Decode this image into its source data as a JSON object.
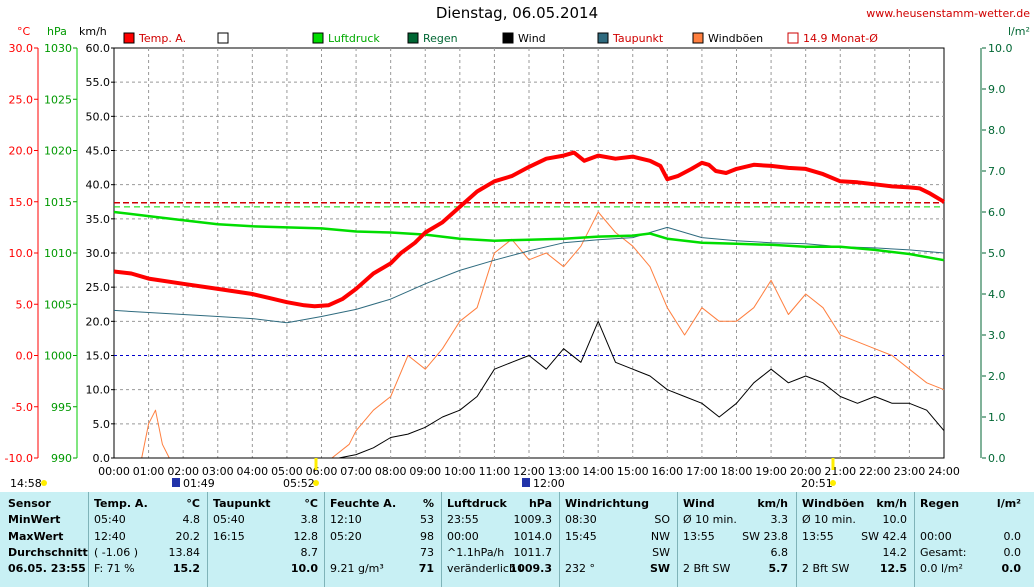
{
  "title": "Dienstag, 06.05.2014",
  "site": "www.heusenstamm-wetter.de",
  "colors": {
    "temp": "#ff0000",
    "pressure": "#00dd00",
    "rain": "#006633",
    "wind": "#000000",
    "dewpoint": "#2f6b7f",
    "gust": "#ff7f3f",
    "monthavg": "#cc0000",
    "panel": "#c8f0f4"
  },
  "chart_data": {
    "type": "line",
    "title": "Dienstag, 06.05.2014",
    "x_ticks": [
      "00:00",
      "01:00",
      "02:00",
      "03:00",
      "04:00",
      "05:00",
      "06:00",
      "07:00",
      "08:00",
      "09:00",
      "10:00",
      "11:00",
      "12:00",
      "13:00",
      "14:00",
      "15:00",
      "16:00",
      "17:00",
      "18:00",
      "19:00",
      "20:00",
      "21:00",
      "22:00",
      "23:00",
      "24:00"
    ],
    "axes": {
      "temp": {
        "label": "°C",
        "ticks": [
          "30.0",
          "25.0",
          "20.0",
          "15.0",
          "10.0",
          "5.0",
          "0.0",
          "-5.0",
          "-10.0"
        ],
        "range": [
          -10,
          30
        ]
      },
      "pressure": {
        "label": "hPa",
        "ticks": [
          "1030",
          "1025",
          "1020",
          "1015",
          "1010",
          "1005",
          "1000",
          "995",
          "990"
        ],
        "range": [
          990,
          1030
        ]
      },
      "wind": {
        "label": "km/h",
        "ticks": [
          "60.0",
          "55.0",
          "50.0",
          "45.0",
          "40.0",
          "35.0",
          "30.0",
          "25.0",
          "20.0",
          "15.0",
          "10.0",
          "5.0",
          "0.0"
        ],
        "range": [
          0,
          60
        ]
      },
      "rain": {
        "label": "l/m²",
        "ticks": [
          "10.0",
          "9.0",
          "8.0",
          "7.0",
          "6.0",
          "5.0",
          "4.0",
          "3.0",
          "2.0",
          "1.0",
          "0.0"
        ],
        "range": [
          0,
          10
        ]
      }
    },
    "legend": [
      "Temp. A.",
      "",
      "Luftdruck",
      "Regen",
      "Wind",
      "Taupunkt",
      "Windböen",
      "14.9 Monat-Ø"
    ],
    "month_avg_temp": 14.9,
    "zero_line_temp": 0,
    "pressure_ref": 1014.5,
    "series": {
      "temp": {
        "name": "Temp. A.",
        "unit": "°C",
        "points": [
          [
            0,
            8.2
          ],
          [
            0.5,
            8
          ],
          [
            1,
            7.5
          ],
          [
            2,
            7
          ],
          [
            3,
            6.5
          ],
          [
            4,
            6
          ],
          [
            4.5,
            5.6
          ],
          [
            5,
            5.2
          ],
          [
            5.5,
            4.9
          ],
          [
            5.8,
            4.8
          ],
          [
            6.2,
            4.9
          ],
          [
            6.6,
            5.5
          ],
          [
            7,
            6.5
          ],
          [
            7.5,
            8
          ],
          [
            8,
            9
          ],
          [
            8.3,
            10
          ],
          [
            8.7,
            11
          ],
          [
            9,
            12
          ],
          [
            9.5,
            13
          ],
          [
            10,
            14.5
          ],
          [
            10.5,
            16
          ],
          [
            11,
            17
          ],
          [
            11.5,
            17.5
          ],
          [
            12,
            18.4
          ],
          [
            12.5,
            19.2
          ],
          [
            13,
            19.5
          ],
          [
            13.3,
            19.8
          ],
          [
            13.6,
            19
          ],
          [
            14,
            19.5
          ],
          [
            14.5,
            19.2
          ],
          [
            15,
            19.4
          ],
          [
            15.5,
            19
          ],
          [
            15.8,
            18.5
          ],
          [
            16,
            17.2
          ],
          [
            16.3,
            17.5
          ],
          [
            16.7,
            18.2
          ],
          [
            17,
            18.8
          ],
          [
            17.2,
            18.6
          ],
          [
            17.4,
            18
          ],
          [
            17.7,
            17.8
          ],
          [
            18,
            18.2
          ],
          [
            18.5,
            18.6
          ],
          [
            19,
            18.5
          ],
          [
            19.5,
            18.3
          ],
          [
            20,
            18.2
          ],
          [
            20.5,
            17.7
          ],
          [
            21,
            17
          ],
          [
            21.5,
            16.9
          ],
          [
            22,
            16.7
          ],
          [
            22.5,
            16.5
          ],
          [
            23,
            16.4
          ],
          [
            23.3,
            16.3
          ],
          [
            23.6,
            15.8
          ],
          [
            24,
            15
          ]
        ]
      },
      "pressure": {
        "name": "Luftdruck",
        "unit": "hPa",
        "points": [
          [
            0,
            1014
          ],
          [
            1,
            1013.6
          ],
          [
            2,
            1013.2
          ],
          [
            3,
            1012.8
          ],
          [
            4,
            1012.6
          ],
          [
            5,
            1012.5
          ],
          [
            6,
            1012.4
          ],
          [
            7,
            1012.1
          ],
          [
            8,
            1012
          ],
          [
            9,
            1011.8
          ],
          [
            10,
            1011.4
          ],
          [
            11,
            1011.2
          ],
          [
            12,
            1011.3
          ],
          [
            13,
            1011.4
          ],
          [
            14,
            1011.6
          ],
          [
            15,
            1011.7
          ],
          [
            15.5,
            1011.9
          ],
          [
            16,
            1011.4
          ],
          [
            17,
            1011
          ],
          [
            18,
            1010.9
          ],
          [
            19,
            1010.8
          ],
          [
            20,
            1010.6
          ],
          [
            21,
            1010.6
          ],
          [
            22,
            1010.3
          ],
          [
            23,
            1009.9
          ],
          [
            24,
            1009.3
          ]
        ]
      },
      "dewpoint": {
        "name": "Taupunkt",
        "unit": "°C",
        "points": [
          [
            0,
            4.4
          ],
          [
            1,
            4.2
          ],
          [
            2,
            4
          ],
          [
            3,
            3.8
          ],
          [
            4,
            3.6
          ],
          [
            5,
            3.2
          ],
          [
            6,
            3.8
          ],
          [
            7,
            4.5
          ],
          [
            8,
            5.5
          ],
          [
            9,
            7
          ],
          [
            10,
            8.3
          ],
          [
            11,
            9.3
          ],
          [
            12,
            10.2
          ],
          [
            13,
            11
          ],
          [
            14,
            11.3
          ],
          [
            15,
            11.5
          ],
          [
            15.5,
            12
          ],
          [
            16,
            12.5
          ],
          [
            17,
            11.5
          ],
          [
            18,
            11.2
          ],
          [
            19,
            11
          ],
          [
            20,
            10.9
          ],
          [
            21,
            10.6
          ],
          [
            22,
            10.5
          ],
          [
            23,
            10.3
          ],
          [
            24,
            10
          ]
        ]
      },
      "wind": {
        "name": "Wind",
        "unit": "km/h",
        "points": [
          [
            0,
            0
          ],
          [
            6.5,
            0
          ],
          [
            7,
            0.5
          ],
          [
            7.5,
            1.5
          ],
          [
            8,
            3
          ],
          [
            8.5,
            3.5
          ],
          [
            9,
            4.5
          ],
          [
            9.5,
            6
          ],
          [
            10,
            7
          ],
          [
            10.5,
            9
          ],
          [
            11,
            13
          ],
          [
            11.5,
            14
          ],
          [
            12,
            15
          ],
          [
            12.5,
            13
          ],
          [
            13,
            16
          ],
          [
            13.5,
            14
          ],
          [
            14,
            20
          ],
          [
            14.5,
            14
          ],
          [
            15,
            13
          ],
          [
            15.5,
            12
          ],
          [
            16,
            10
          ],
          [
            16.5,
            9
          ],
          [
            17,
            8
          ],
          [
            17.5,
            6
          ],
          [
            18,
            8
          ],
          [
            18.5,
            11
          ],
          [
            19,
            13
          ],
          [
            19.5,
            11
          ],
          [
            20,
            12
          ],
          [
            20.5,
            11
          ],
          [
            21,
            9
          ],
          [
            21.5,
            8
          ],
          [
            22,
            9
          ],
          [
            22.5,
            8
          ],
          [
            23,
            8
          ],
          [
            23.5,
            7
          ],
          [
            24,
            4
          ]
        ]
      },
      "gust": {
        "name": "Windböen",
        "unit": "km/h",
        "points": [
          [
            0,
            0
          ],
          [
            0.8,
            0
          ],
          [
            1,
            5
          ],
          [
            1.2,
            7
          ],
          [
            1.4,
            2
          ],
          [
            1.6,
            0
          ],
          [
            6.3,
            0
          ],
          [
            6.8,
            2
          ],
          [
            7,
            4
          ],
          [
            7.5,
            7
          ],
          [
            8,
            9
          ],
          [
            8.5,
            15
          ],
          [
            9,
            13
          ],
          [
            9.5,
            16
          ],
          [
            10,
            20
          ],
          [
            10.5,
            22
          ],
          [
            11,
            30
          ],
          [
            11.5,
            32
          ],
          [
            12,
            29
          ],
          [
            12.5,
            30
          ],
          [
            13,
            28
          ],
          [
            13.5,
            31
          ],
          [
            14,
            36
          ],
          [
            14.5,
            33
          ],
          [
            15,
            31
          ],
          [
            15.5,
            28
          ],
          [
            16,
            22
          ],
          [
            16.5,
            18
          ],
          [
            17,
            22
          ],
          [
            17.5,
            20
          ],
          [
            18,
            20
          ],
          [
            18.5,
            22
          ],
          [
            19,
            26
          ],
          [
            19.5,
            21
          ],
          [
            20,
            24
          ],
          [
            20.5,
            22
          ],
          [
            21,
            18
          ],
          [
            21.5,
            17
          ],
          [
            22,
            16
          ],
          [
            22.5,
            15
          ],
          [
            23,
            13
          ],
          [
            23.5,
            11
          ],
          [
            24,
            10
          ]
        ]
      }
    }
  },
  "markers": {
    "sunrise": "05:52",
    "sunset": "20:51",
    "marks": [
      "14:58",
      "01:49",
      "12:00"
    ]
  },
  "stats": {
    "row_labels": [
      "Sensor",
      "MinWert",
      "MaxWert",
      "Durchschnitt",
      "06.05. 23:55"
    ],
    "temp": {
      "head": "Temp. A.",
      "unit": "°C",
      "rows": [
        [
          "05:40",
          "4.8"
        ],
        [
          "12:40",
          "20.2"
        ],
        [
          "( -1.06 )",
          "13.84"
        ],
        [
          "F: 71 %",
          "15.2"
        ]
      ]
    },
    "dew": {
      "head": "Taupunkt",
      "unit": "°C",
      "rows": [
        [
          "05:40",
          "3.8"
        ],
        [
          "16:15",
          "12.8"
        ],
        [
          "",
          "8.7"
        ],
        [
          "",
          "10.0"
        ]
      ]
    },
    "hum": {
      "head": "Feuchte A.",
      "unit": "%",
      "rows": [
        [
          "12:10",
          "53"
        ],
        [
          "05:20",
          "98"
        ],
        [
          "",
          "73"
        ],
        [
          "9.21 g/m³",
          "71"
        ]
      ]
    },
    "press": {
      "head": "Luftdruck",
      "unit": "hPa",
      "rows": [
        [
          "23:55",
          "1009.3"
        ],
        [
          "00:00",
          "1014.0"
        ],
        [
          "^1.1hPa/h",
          "1011.7"
        ],
        [
          "veränderlich↓",
          "1009.3"
        ]
      ]
    },
    "dir": {
      "head": "Windrichtung",
      "unit": "",
      "rows": [
        [
          "08:30",
          "SO"
        ],
        [
          "15:45",
          "NW"
        ],
        [
          "",
          "SW"
        ],
        [
          "232 °",
          "SW"
        ]
      ]
    },
    "wind": {
      "head": "Wind",
      "unit": "km/h",
      "rows": [
        [
          "Ø 10 min.",
          "3.3"
        ],
        [
          "13:55",
          "SW 23.8"
        ],
        [
          "",
          "6.8"
        ],
        [
          "2 Bft SW",
          "5.7"
        ]
      ]
    },
    "gust": {
      "head": "Windböen",
      "unit": "km/h",
      "rows": [
        [
          "Ø 10 min.",
          "10.0"
        ],
        [
          "13:55",
          "SW 42.4"
        ],
        [
          "",
          "14.2"
        ],
        [
          "2 Bft SW",
          "12.5"
        ]
      ]
    },
    "rain": {
      "head": "Regen",
      "unit": "l/m²",
      "rows": [
        [
          "",
          ""
        ],
        [
          "00:00",
          "0.0"
        ],
        [
          "Gesamt:",
          "0.0"
        ],
        [
          "0.0 l/m²",
          "0.0"
        ]
      ]
    }
  }
}
